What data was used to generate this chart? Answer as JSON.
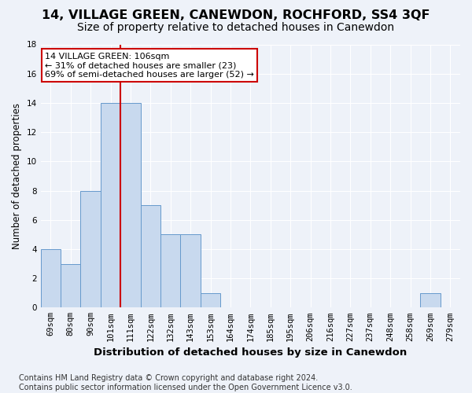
{
  "title": "14, VILLAGE GREEN, CANEWDON, ROCHFORD, SS4 3QF",
  "subtitle": "Size of property relative to detached houses in Canewdon",
  "xlabel": "Distribution of detached houses by size in Canewdon",
  "ylabel": "Number of detached properties",
  "categories": [
    "69sqm",
    "80sqm",
    "90sqm",
    "101sqm",
    "111sqm",
    "122sqm",
    "132sqm",
    "143sqm",
    "153sqm",
    "164sqm",
    "174sqm",
    "185sqm",
    "195sqm",
    "206sqm",
    "216sqm",
    "227sqm",
    "237sqm",
    "248sqm",
    "258sqm",
    "269sqm",
    "279sqm"
  ],
  "bar_heights": [
    4,
    3,
    8,
    14,
    14,
    7,
    5,
    5,
    1,
    0,
    0,
    0,
    0,
    0,
    0,
    0,
    0,
    0,
    0,
    1,
    0
  ],
  "bar_color": "#c8d9ee",
  "bar_edge_color": "#6699cc",
  "vline_index": 4,
  "vline_color": "#cc0000",
  "annotation_text": "14 VILLAGE GREEN: 106sqm\n← 31% of detached houses are smaller (23)\n69% of semi-detached houses are larger (52) →",
  "annotation_box_facecolor": "#ffffff",
  "annotation_box_edgecolor": "#cc0000",
  "ylim": [
    0,
    18
  ],
  "yticks": [
    0,
    2,
    4,
    6,
    8,
    10,
    12,
    14,
    16,
    18
  ],
  "footer_line1": "Contains HM Land Registry data © Crown copyright and database right 2024.",
  "footer_line2": "Contains public sector information licensed under the Open Government Licence v3.0.",
  "background_color": "#eef2f9",
  "plot_bg_color": "#eef2f9",
  "grid_color": "#ffffff",
  "title_fontsize": 11.5,
  "subtitle_fontsize": 10,
  "xlabel_fontsize": 9.5,
  "ylabel_fontsize": 8.5,
  "tick_fontsize": 7.5,
  "annotation_fontsize": 8,
  "footer_fontsize": 7
}
